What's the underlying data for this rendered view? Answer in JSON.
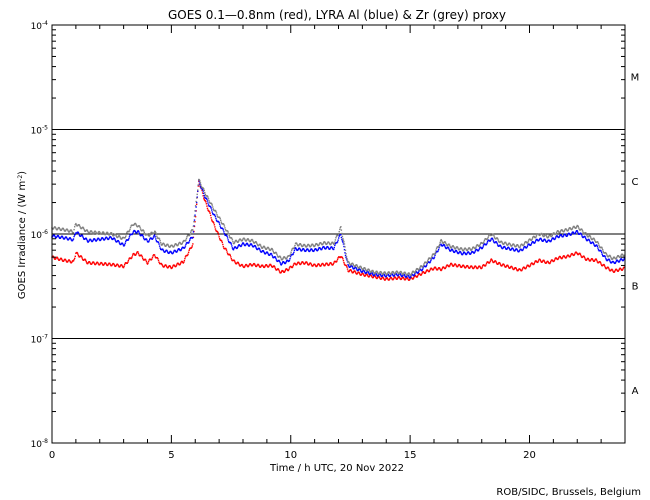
{
  "chart_data": {
    "type": "scatter",
    "title": "GOES 0.1—0.8nm (red), LYRA Al (blue) & Zr (grey) proxy",
    "xlabel": "Time / h UTC, 20 Nov 2022",
    "ylabel_prefix": "GOES Irradiance / (W m",
    "ylabel_exp": "-2",
    "ylabel_suffix": ")",
    "xlim": [
      0,
      24
    ],
    "ylim": [
      1e-08,
      0.0001
    ],
    "yscale": "log",
    "x_ticks": [
      {
        "value": 0,
        "label": "0"
      },
      {
        "value": 5,
        "label": "5"
      },
      {
        "value": 10,
        "label": "10"
      },
      {
        "value": 15,
        "label": "15"
      },
      {
        "value": 20,
        "label": "20"
      }
    ],
    "y_ticks": [
      {
        "value": 1e-08,
        "base": "10",
        "exp": "-8"
      },
      {
        "value": 1e-07,
        "base": "10",
        "exp": "-7"
      },
      {
        "value": 1e-06,
        "base": "10",
        "exp": "-6"
      },
      {
        "value": 1e-05,
        "base": "10",
        "exp": "-5"
      },
      {
        "value": 0.0001,
        "base": "10",
        "exp": "-4"
      }
    ],
    "flare_levels": [
      {
        "value": 1e-07
      },
      {
        "value": 1e-06
      },
      {
        "value": 1e-05
      }
    ],
    "class_labels": [
      {
        "label": "A",
        "value": 3.2e-08
      },
      {
        "label": "B",
        "value": 3.2e-07
      },
      {
        "label": "C",
        "value": 3.2e-06
      },
      {
        "label": "M",
        "value": 3.2e-05
      }
    ],
    "series": [
      {
        "color": "#ff0000",
        "x": [
          0,
          0.5,
          0.9,
          1.0,
          1.5,
          2.5,
          3.0,
          3.4,
          3.6,
          4.0,
          4.3,
          4.6,
          5.0,
          5.5,
          5.9,
          6.15,
          6.4,
          6.8,
          7.2,
          7.6,
          8.0,
          8.4,
          8.8,
          9.2,
          9.6,
          9.9,
          10.2,
          10.6,
          11.0,
          11.4,
          11.8,
          12.1,
          12.4,
          13.0,
          13.5,
          14.0,
          14.5,
          15.0,
          15.5,
          16.0,
          16.3,
          16.7,
          17.2,
          17.6,
          18.0,
          18.4,
          18.8,
          19.2,
          19.6,
          20.0,
          20.4,
          20.8,
          21.2,
          21.6,
          22.0,
          22.4,
          22.8,
          23.2,
          23.5,
          24.0
        ],
        "values": [
          6e-07,
          5.6e-07,
          5.4e-07,
          6.6e-07,
          5.3e-07,
          5.1e-07,
          4.9e-07,
          6.3e-07,
          6.6e-07,
          5.3e-07,
          6.3e-07,
          5e-07,
          4.8e-07,
          5.4e-07,
          8e-07,
          3.2e-06,
          2.1e-06,
          1.2e-06,
          7.5e-07,
          5.5e-07,
          4.9e-07,
          5.1e-07,
          4.9e-07,
          5e-07,
          4.3e-07,
          4.6e-07,
          5.2e-07,
          5.3e-07,
          5e-07,
          5.1e-07,
          5.2e-07,
          6.2e-07,
          4.5e-07,
          4.1e-07,
          3.9e-07,
          3.7e-07,
          3.8e-07,
          3.7e-07,
          4.2e-07,
          4.7e-07,
          4.6e-07,
          5.1e-07,
          4.9e-07,
          4.8e-07,
          4.8e-07,
          5.6e-07,
          5.1e-07,
          4.8e-07,
          4.5e-07,
          5e-07,
          5.6e-07,
          5.3e-07,
          5.9e-07,
          6.1e-07,
          6.6e-07,
          5.7e-07,
          5.6e-07,
          4.8e-07,
          4.4e-07,
          4.7e-07
        ]
      },
      {
        "color": "#0000ff",
        "x": [
          0,
          0.5,
          0.9,
          1.0,
          1.5,
          2.5,
          3.0,
          3.4,
          3.6,
          4.0,
          4.3,
          4.6,
          5.0,
          5.5,
          5.9,
          6.15,
          6.4,
          6.8,
          7.2,
          7.6,
          8.0,
          8.4,
          8.8,
          9.2,
          9.6,
          9.9,
          10.2,
          10.6,
          11.0,
          11.4,
          11.8,
          12.1,
          12.4,
          13.0,
          13.5,
          14.0,
          14.5,
          15.0,
          15.5,
          16.0,
          16.3,
          16.7,
          17.2,
          17.6,
          18.0,
          18.4,
          18.8,
          19.2,
          19.6,
          20.0,
          20.4,
          20.8,
          21.2,
          21.6,
          22.0,
          22.4,
          22.8,
          23.2,
          23.5,
          24.0
        ],
        "values": [
          9.6e-07,
          9.2e-07,
          8.8e-07,
          1.05e-06,
          8.6e-07,
          9.2e-07,
          7.8e-07,
          1.05e-06,
          1.05e-06,
          8.5e-07,
          9.5e-07,
          7e-07,
          6.6e-07,
          7.3e-07,
          9.5e-07,
          3.2e-06,
          2.3e-06,
          1.5e-06,
          1.05e-06,
          7.2e-07,
          8e-07,
          7.8e-07,
          6.8e-07,
          6.3e-07,
          5.2e-07,
          5.5e-07,
          7.2e-07,
          7e-07,
          7e-07,
          7.4e-07,
          7.3e-07,
          1e-06,
          5e-07,
          4.4e-07,
          4.1e-07,
          4e-07,
          4.1e-07,
          3.9e-07,
          4.6e-07,
          6e-07,
          8e-07,
          7e-07,
          6.5e-07,
          6.6e-07,
          7.4e-07,
          9e-07,
          7.5e-07,
          7.2e-07,
          6.9e-07,
          7.9e-07,
          8.9e-07,
          8.5e-07,
          9.5e-07,
          9.8e-07,
          1.05e-06,
          8.9e-07,
          7.7e-07,
          5.8e-07,
          5.3e-07,
          5.8e-07
        ]
      },
      {
        "color": "#808080",
        "x": [
          0,
          0.5,
          0.9,
          1.0,
          1.5,
          2.5,
          3.0,
          3.4,
          3.6,
          4.0,
          4.3,
          4.6,
          5.0,
          5.5,
          5.9,
          6.15,
          6.4,
          6.8,
          7.2,
          7.6,
          8.0,
          8.4,
          8.8,
          9.2,
          9.6,
          9.9,
          10.2,
          10.6,
          11.0,
          11.4,
          11.8,
          12.1,
          12.4,
          13.0,
          13.5,
          14.0,
          14.5,
          15.0,
          15.5,
          16.0,
          16.3,
          16.7,
          17.2,
          17.6,
          18.0,
          18.4,
          18.8,
          19.2,
          19.6,
          20.0,
          20.4,
          20.8,
          21.2,
          21.6,
          22.0,
          22.4,
          22.8,
          23.2,
          23.5,
          24.0
        ],
        "values": [
          1.15e-06,
          1.1e-06,
          1.05e-06,
          1.25e-06,
          1.05e-06,
          1e-06,
          9e-07,
          1.25e-06,
          1.2e-06,
          9.6e-07,
          1.05e-06,
          8e-07,
          7.6e-07,
          8.3e-07,
          1.1e-06,
          3.3e-06,
          2.5e-06,
          1.7e-06,
          1.2e-06,
          8.3e-07,
          8.9e-07,
          8.6e-07,
          7.5e-07,
          7.1e-07,
          5.8e-07,
          6e-07,
          8e-07,
          7.7e-07,
          7.8e-07,
          8.2e-07,
          8.1e-07,
          1.15e-06,
          5.3e-07,
          4.7e-07,
          4.3e-07,
          4.2e-07,
          4.3e-07,
          4.1e-07,
          4.9e-07,
          6.4e-07,
          8.6e-07,
          7.6e-07,
          7.1e-07,
          7.2e-07,
          8.1e-07,
          1e-06,
          8.3e-07,
          7.9e-07,
          7.6e-07,
          8.7e-07,
          1e-06,
          9.4e-07,
          1.05e-06,
          1.1e-06,
          1.18e-06,
          9.8e-07,
          8.5e-07,
          6.4e-07,
          5.8e-07,
          6.4e-07
        ]
      }
    ]
  },
  "footer": {
    "credit": "ROB/SIDC, Brussels, Belgium"
  }
}
